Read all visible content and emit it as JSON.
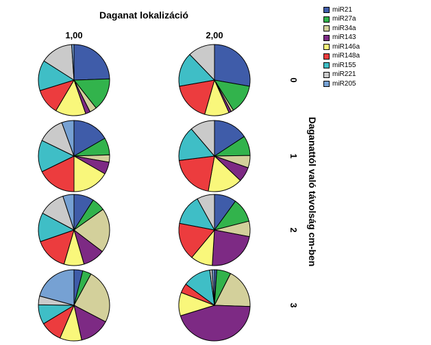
{
  "chart_data": {
    "type": "pie",
    "title": "Daganat lokalizáció",
    "column_labels": [
      "1,00",
      "2,00"
    ],
    "row_axis_title": "Daganattól való távolság cm-ben",
    "row_labels": [
      "0",
      "1",
      "2",
      "3"
    ],
    "legend": [
      {
        "name": "miR21",
        "color": "#3f5ca9"
      },
      {
        "name": "miR27a",
        "color": "#32b34c"
      },
      {
        "name": "miR34a",
        "color": "#d3d09b"
      },
      {
        "name": "miR143",
        "color": "#7d2a84"
      },
      {
        "name": "miR146a",
        "color": "#f9f77b"
      },
      {
        "name": "miR148a",
        "color": "#ec3c3e"
      },
      {
        "name": "miR155",
        "color": "#3fbec6"
      },
      {
        "name": "miR221",
        "color": "#cacaca"
      },
      {
        "name": "miR205",
        "color": "#76a1d3"
      }
    ],
    "pies": [
      {
        "row": "0",
        "column": "1,00",
        "values": [
          23,
          14,
          3,
          2,
          13,
          11,
          13,
          14,
          1
        ]
      },
      {
        "row": "0",
        "column": "2,00",
        "values": [
          25,
          12,
          1,
          1,
          10,
          16,
          14,
          11,
          0
        ]
      },
      {
        "row": "1",
        "column": "1,00",
        "values": [
          15,
          7,
          3,
          5,
          15,
          16,
          13,
          11,
          5
        ]
      },
      {
        "row": "1",
        "column": "2,00",
        "values": [
          14,
          8,
          5,
          6,
          14,
          18,
          14,
          10,
          0
        ]
      },
      {
        "row": "2",
        "column": "1,00",
        "values": [
          9,
          6,
          20,
          10,
          9,
          15,
          13,
          12,
          5
        ]
      },
      {
        "row": "2",
        "column": "2,00",
        "values": [
          10,
          11,
          7,
          23,
          10,
          17,
          14,
          8,
          0
        ]
      },
      {
        "row": "3",
        "column": "1,00",
        "values": [
          4,
          4,
          25,
          14,
          10,
          10,
          9,
          4,
          21
        ]
      },
      {
        "row": "3",
        "column": "2,00",
        "values": [
          1,
          6,
          17,
          42,
          10,
          4,
          12,
          1,
          1
        ]
      }
    ]
  }
}
